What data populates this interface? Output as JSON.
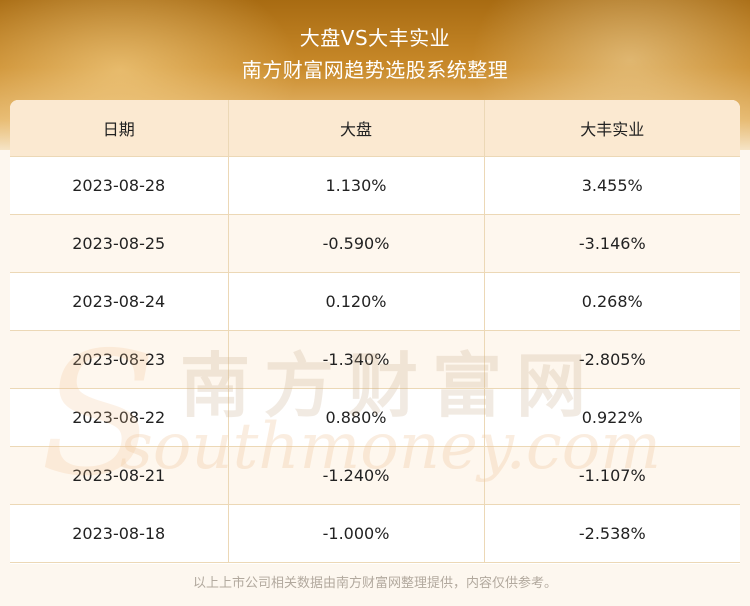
{
  "header": {
    "title": "大盘VS大丰实业",
    "subtitle": "南方财富网趋势选股系统整理"
  },
  "table": {
    "columns": [
      "日期",
      "大盘",
      "大丰实业"
    ],
    "rows": [
      [
        "2023-08-28",
        "1.130%",
        "3.455%"
      ],
      [
        "2023-08-25",
        "-0.590%",
        "-3.146%"
      ],
      [
        "2023-08-24",
        "0.120%",
        "0.268%"
      ],
      [
        "2023-08-23",
        "-1.340%",
        "-2.805%"
      ],
      [
        "2023-08-22",
        "0.880%",
        "0.922%"
      ],
      [
        "2023-08-21",
        "-1.240%",
        "-1.107%"
      ],
      [
        "2023-08-18",
        "-1.000%",
        "-2.538%"
      ]
    ]
  },
  "watermark": {
    "chinese": "南方财富网",
    "english": "southmoney.com"
  },
  "footer": {
    "disclaimer": "以上上市公司相关数据由南方财富网整理提供，内容仅供参考。"
  }
}
